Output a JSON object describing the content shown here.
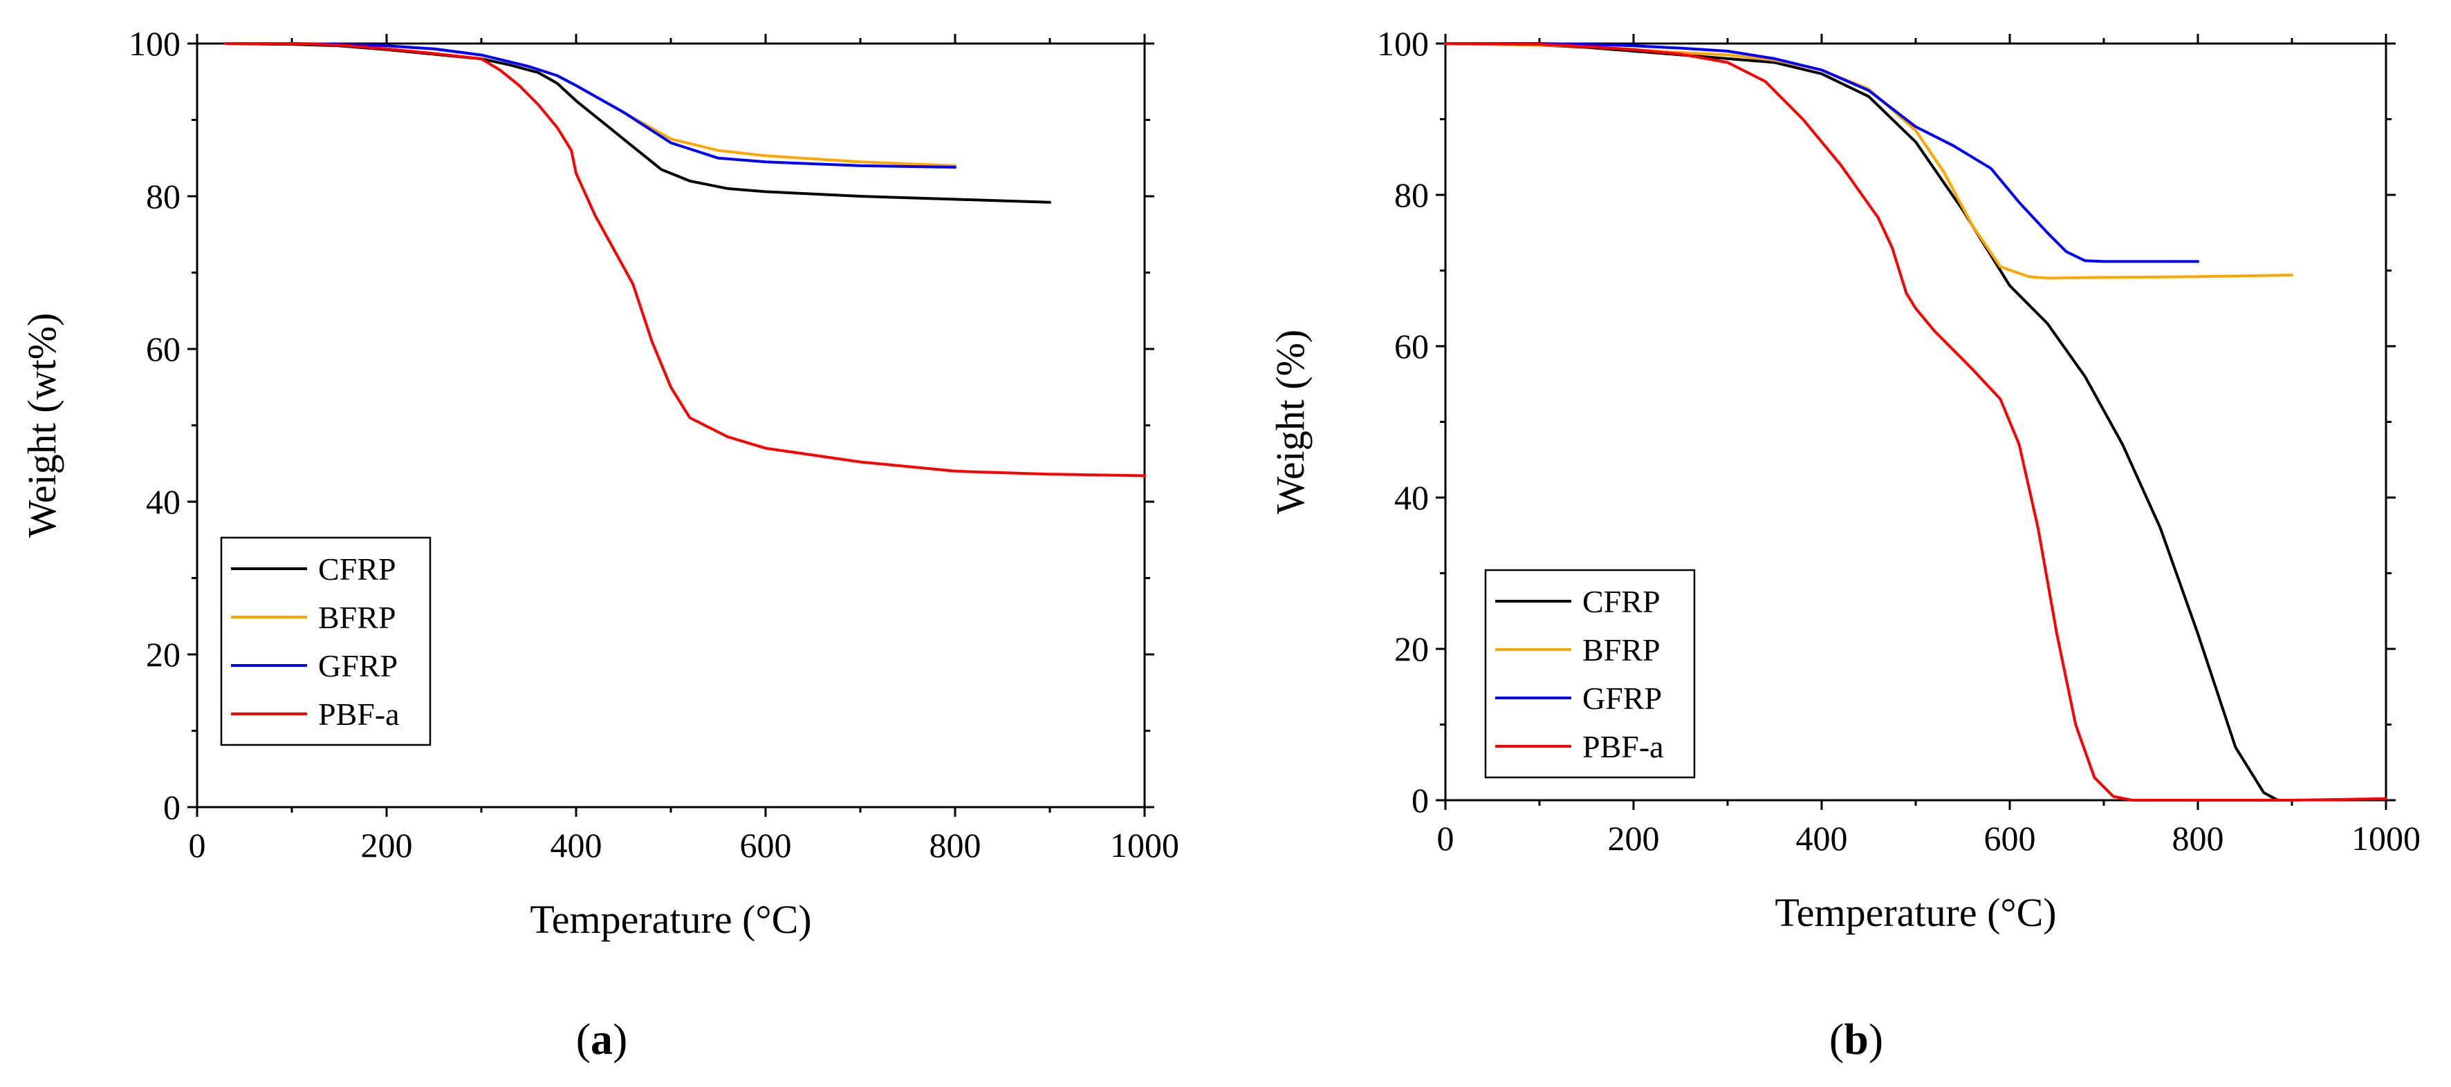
{
  "colors": {
    "CFRP": "#000000",
    "BFRP": "#FFA500",
    "GFRP": "#0000FF",
    "PBF-a": "#FF0000"
  },
  "chart_data": [
    {
      "type": "line",
      "caption_pre": "(",
      "caption_letter": "a",
      "caption_post": ")",
      "xlabel": "Temperature (°C)",
      "ylabel": "Weight (wt%)",
      "xlim": [
        0,
        1000
      ],
      "ylim": [
        0,
        100
      ],
      "xticks": [
        0,
        200,
        400,
        600,
        800,
        1000
      ],
      "yticks": [
        0,
        20,
        40,
        60,
        80,
        100
      ],
      "grid": false,
      "legend_position": "bottom-left",
      "series": [
        {
          "name": "CFRP",
          "x": [
            30,
            100,
            150,
            200,
            250,
            300,
            330,
            360,
            380,
            400,
            430,
            460,
            490,
            520,
            560,
            600,
            700,
            800,
            900
          ],
          "y": [
            100,
            99.9,
            99.7,
            99.2,
            98.6,
            98,
            97.2,
            96.2,
            94.8,
            92.5,
            89.5,
            86.5,
            83.5,
            82,
            81,
            80.6,
            80,
            79.6,
            79.2
          ]
        },
        {
          "name": "BFRP",
          "x": [
            30,
            100,
            150,
            200,
            250,
            300,
            350,
            380,
            400,
            450,
            500,
            550,
            600,
            700,
            800
          ],
          "y": [
            100,
            100,
            99.9,
            99.7,
            99.3,
            98.5,
            97,
            95.8,
            94.5,
            91,
            87.5,
            86,
            85.3,
            84.5,
            84
          ]
        },
        {
          "name": "GFRP",
          "x": [
            30,
            100,
            150,
            200,
            250,
            300,
            350,
            380,
            400,
            450,
            500,
            550,
            600,
            700,
            800
          ],
          "y": [
            100,
            100,
            99.9,
            99.7,
            99.3,
            98.5,
            97,
            95.8,
            94.5,
            91,
            87,
            85,
            84.5,
            84,
            83.8
          ]
        },
        {
          "name": "PBF-a",
          "x": [
            30,
            100,
            150,
            200,
            250,
            300,
            320,
            340,
            360,
            380,
            390,
            395,
            400,
            420,
            440,
            460,
            480,
            500,
            520,
            560,
            600,
            700,
            800,
            900,
            1000
          ],
          "y": [
            100,
            100,
            99.8,
            99.3,
            98.7,
            98,
            96.5,
            94.5,
            92,
            89,
            87,
            86,
            83,
            77.5,
            73,
            68.5,
            61,
            55,
            51,
            48.5,
            47,
            45.2,
            44,
            43.6,
            43.4
          ]
        }
      ]
    },
    {
      "type": "line",
      "caption_pre": "(",
      "caption_letter": "b",
      "caption_post": ")",
      "xlabel": "Temperature (°C)",
      "ylabel": "Weight (%)",
      "xlim": [
        0,
        1000
      ],
      "ylim": [
        0,
        100
      ],
      "xticks": [
        0,
        200,
        400,
        600,
        800,
        1000
      ],
      "yticks": [
        0,
        20,
        40,
        60,
        80,
        100
      ],
      "grid": false,
      "legend_position": "bottom-left",
      "series": [
        {
          "name": "CFRP",
          "x": [
            0,
            100,
            150,
            200,
            250,
            300,
            350,
            400,
            450,
            500,
            550,
            600,
            640,
            680,
            720,
            760,
            800,
            840,
            870,
            885
          ],
          "y": [
            100,
            99.8,
            99.5,
            99,
            98.5,
            98,
            97.5,
            96,
            93,
            87,
            78,
            68,
            63,
            56,
            47,
            36,
            22,
            7,
            1,
            0
          ]
        },
        {
          "name": "BFRP",
          "x": [
            0,
            100,
            150,
            200,
            250,
            300,
            350,
            400,
            450,
            500,
            530,
            560,
            590,
            620,
            640,
            700,
            800,
            900
          ],
          "y": [
            100,
            99.8,
            99.6,
            99.2,
            98.8,
            98.5,
            97.8,
            96.5,
            94,
            88.5,
            83,
            76,
            70.5,
            69.2,
            69,
            69.1,
            69.2,
            69.4
          ]
        },
        {
          "name": "GFRP",
          "x": [
            0,
            100,
            150,
            200,
            250,
            300,
            350,
            400,
            450,
            500,
            540,
            580,
            610,
            640,
            660,
            680,
            700,
            800
          ],
          "y": [
            100,
            100,
            99.9,
            99.7,
            99.4,
            99,
            98,
            96.5,
            93.8,
            89,
            86.5,
            83.5,
            79,
            75,
            72.5,
            71.3,
            71.2,
            71.2
          ]
        },
        {
          "name": "PBF-a",
          "x": [
            0,
            100,
            150,
            200,
            250,
            300,
            340,
            380,
            420,
            460,
            475,
            490,
            500,
            520,
            560,
            590,
            610,
            630,
            650,
            670,
            690,
            710,
            730,
            800,
            900,
            1000
          ],
          "y": [
            100,
            99.9,
            99.6,
            99.2,
            98.6,
            97.5,
            95,
            90,
            84,
            77,
            73,
            67,
            65,
            62,
            57,
            53,
            47,
            36,
            22,
            10,
            3,
            0.5,
            0,
            0,
            0,
            0.2
          ]
        }
      ]
    }
  ]
}
